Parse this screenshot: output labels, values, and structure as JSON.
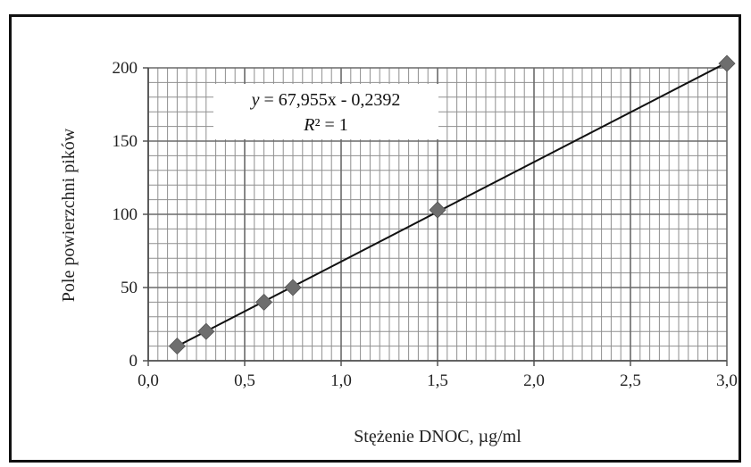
{
  "chart_data": {
    "type": "scatter",
    "title": "",
    "xlabel": "Stężenie DNOC, µg/ml",
    "ylabel": "Pole powierzchni pików",
    "xlim": [
      0.0,
      3.0
    ],
    "ylim": [
      0,
      200
    ],
    "x_ticks": [
      0.0,
      0.5,
      1.0,
      1.5,
      2.0,
      2.5,
      3.0
    ],
    "x_tick_labels": [
      "0,0",
      "0,5",
      "1,0",
      "1,5",
      "2,0",
      "2,5",
      "3,0"
    ],
    "y_ticks": [
      0,
      50,
      100,
      150,
      200
    ],
    "y_tick_labels": [
      "0",
      "50",
      "100",
      "150",
      "200"
    ],
    "grid": true,
    "series": [
      {
        "marker": "diamond",
        "color": "#6e6e6e",
        "points": [
          {
            "x": 0.15,
            "y": 10
          },
          {
            "x": 0.3,
            "y": 20
          },
          {
            "x": 0.6,
            "y": 40
          },
          {
            "x": 0.75,
            "y": 50
          },
          {
            "x": 1.5,
            "y": 103
          },
          {
            "x": 3.0,
            "y": 203
          }
        ]
      }
    ],
    "trendline": {
      "slope": 67.955,
      "intercept": -0.2392,
      "x_range": [
        0.15,
        3.0
      ],
      "color": "#111111"
    },
    "annotation": {
      "equation_y": "y",
      "equation_rest": " = 67,955x - 0,2392",
      "r2_label": "R",
      "r2_rest": "² = 1"
    }
  }
}
